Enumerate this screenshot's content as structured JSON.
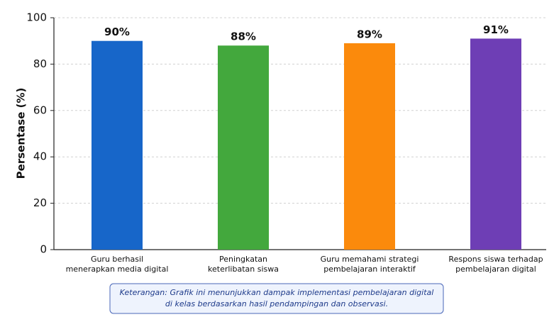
{
  "chart_data": {
    "type": "bar",
    "ylabel": "Persentase (%)",
    "categories": [
      [
        "Guru berhasil",
        "menerapkan media digital"
      ],
      [
        "Peningkatan",
        "keterlibatan siswa"
      ],
      [
        "Guru memahami strategi",
        "pembelajaran interaktif"
      ],
      [
        "Respons siswa terhadap",
        "pembelajaran digital"
      ]
    ],
    "values": [
      90,
      88,
      89,
      91
    ],
    "value_labels": [
      "90%",
      "88%",
      "89%",
      "91%"
    ],
    "colors": [
      "#1766c9",
      "#43a83d",
      "#fb8a0c",
      "#6e3eb5"
    ],
    "ylim": [
      0,
      100
    ],
    "yticks": [
      0,
      20,
      40,
      60,
      80,
      100
    ],
    "grid": true,
    "note": [
      "Keterangan: Grafik ini menunjukkan dampak implementasi pembelajaran digital",
      "di kelas berdasarkan hasil pendampingan dan observasi."
    ]
  }
}
